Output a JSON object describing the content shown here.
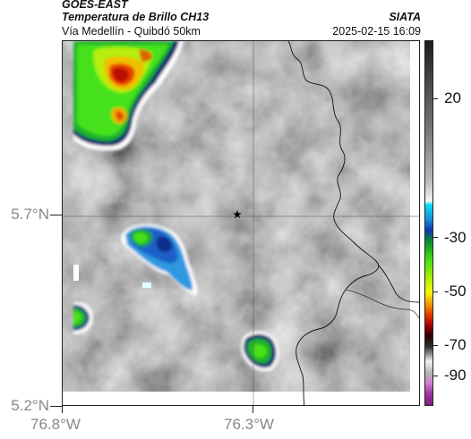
{
  "header": {
    "satellite": "GOES-EAST",
    "product": "Temperatura de Brillo CH13",
    "organization": "SIATA",
    "route": "Vía Medellín - Quibdó 50km",
    "timestamp": "2025-02-15 16:09"
  },
  "map": {
    "lat_labels": [
      "5.7°N",
      "5.2°N"
    ],
    "lon_labels": [
      "76.8°W",
      "76.3°W"
    ],
    "marker": "star-marker"
  },
  "colorbar": {
    "labels": [
      "20",
      "-30",
      "-50",
      "-70",
      "-90"
    ],
    "colors": [
      "#222222",
      "#888888",
      "#e8e8e8",
      "#00d8e8",
      "#0050c0",
      "#10a030",
      "#40e010",
      "#f8f800",
      "#f07000",
      "#c01000",
      "#300000",
      "#f0f0f0",
      "#b040b0"
    ]
  }
}
